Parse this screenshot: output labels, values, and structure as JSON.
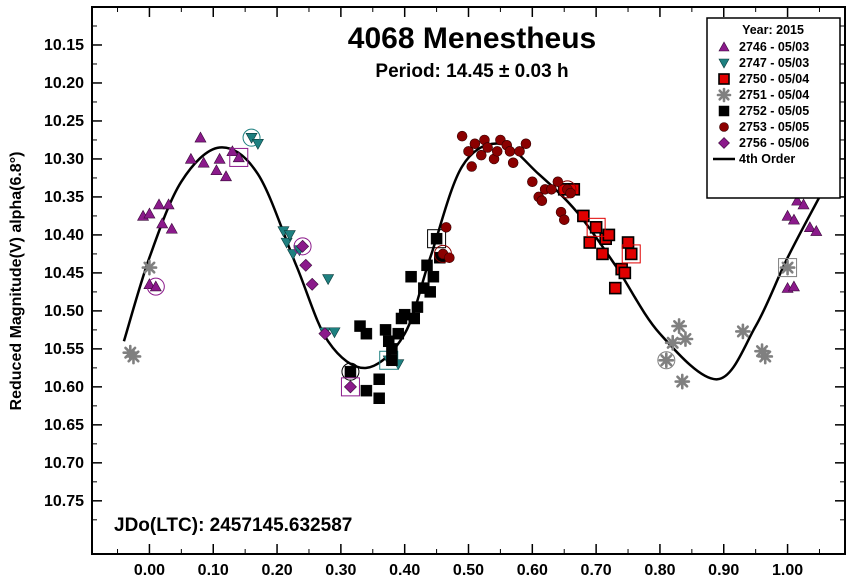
{
  "chart_data": {
    "type": "scatter",
    "title": "4068 Menestheus",
    "subtitle": "Period: 14.45 ± 0.03 h",
    "ylabel": "Reduced Magnitude(V) alpha(6.8°)",
    "xlabel": "",
    "annotation": "JDo(LTC): 2457145.632587",
    "xlim": [
      -0.09,
      1.09
    ],
    "ylim": [
      10.1,
      10.82
    ],
    "y_inverted": true,
    "x_ticks": [
      0.0,
      0.1,
      0.2,
      0.3,
      0.4,
      0.5,
      0.6,
      0.7,
      0.8,
      0.9,
      1.0
    ],
    "x_tick_labels": [
      "0.00",
      "0.10",
      "0.20",
      "0.30",
      "0.40",
      "0.50",
      "0.60",
      "0.70",
      "0.80",
      "0.90",
      "1.00"
    ],
    "y_ticks": [
      10.15,
      10.2,
      10.25,
      10.3,
      10.35,
      10.4,
      10.45,
      10.5,
      10.55,
      10.6,
      10.65,
      10.7,
      10.75
    ],
    "y_tick_labels": [
      "10.15",
      "10.20",
      "10.25",
      "10.30",
      "10.35",
      "10.40",
      "10.45",
      "10.50",
      "10.55",
      "10.60",
      "10.65",
      "10.70",
      "10.75"
    ],
    "legend": {
      "title": "Year: 2015",
      "placement": "top-right"
    },
    "series": [
      {
        "name": "2746 - 05/03",
        "marker": "triangle-up",
        "color": "#8B1A8B",
        "points": [
          [
            -0.01,
            10.375
          ],
          [
            0.0,
            10.372
          ],
          [
            0.015,
            10.36
          ],
          [
            0.03,
            10.36
          ],
          [
            0.02,
            10.385
          ],
          [
            0.035,
            10.392
          ],
          [
            0.065,
            10.3
          ],
          [
            0.08,
            10.272
          ],
          [
            0.085,
            10.305
          ],
          [
            0.105,
            10.315
          ],
          [
            0.11,
            10.3
          ],
          [
            0.13,
            10.29
          ],
          [
            0.12,
            10.323
          ],
          [
            0.14,
            10.298
          ],
          [
            0.0,
            10.465
          ],
          [
            0.01,
            10.468
          ],
          [
            1.0,
            10.375
          ],
          [
            1.01,
            10.38
          ],
          [
            1.015,
            10.355
          ],
          [
            1.025,
            10.36
          ],
          [
            1.035,
            10.39
          ],
          [
            1.045,
            10.395
          ],
          [
            1.0,
            10.47
          ],
          [
            1.01,
            10.468
          ]
        ],
        "circled": [
          [
            0.01,
            10.468
          ]
        ],
        "boxed": [
          [
            0.14,
            10.298
          ]
        ]
      },
      {
        "name": "2747 - 05/03",
        "marker": "triangle-down",
        "color": "#1E8080",
        "points": [
          [
            0.16,
            10.272
          ],
          [
            0.17,
            10.28
          ],
          [
            0.21,
            10.395
          ],
          [
            0.215,
            10.41
          ],
          [
            0.22,
            10.4
          ],
          [
            0.225,
            10.425
          ],
          [
            0.235,
            10.42
          ],
          [
            0.28,
            10.458
          ],
          [
            0.275,
            10.528
          ],
          [
            0.29,
            10.528
          ],
          [
            0.375,
            10.565
          ],
          [
            0.39,
            10.57
          ]
        ],
        "circled": [
          [
            0.16,
            10.272
          ]
        ],
        "boxed": [
          [
            0.375,
            10.565
          ]
        ]
      },
      {
        "name": "2750 - 05/04",
        "marker": "square",
        "color": "#E00000",
        "points": [
          [
            0.65,
            10.34
          ],
          [
            0.665,
            10.34
          ],
          [
            0.68,
            10.375
          ],
          [
            0.69,
            10.41
          ],
          [
            0.7,
            10.39
          ],
          [
            0.71,
            10.425
          ],
          [
            0.715,
            10.405
          ],
          [
            0.72,
            10.4
          ],
          [
            0.73,
            10.47
          ],
          [
            0.74,
            10.445
          ],
          [
            0.745,
            10.45
          ],
          [
            0.75,
            10.41
          ],
          [
            0.755,
            10.425
          ]
        ],
        "circled": [],
        "boxed": [
          [
            0.7,
            10.39
          ],
          [
            0.755,
            10.425
          ]
        ]
      },
      {
        "name": "2751 - 05/04",
        "marker": "asterisk",
        "color": "#808080",
        "points": [
          [
            -0.03,
            10.555
          ],
          [
            -0.025,
            10.56
          ],
          [
            0.0,
            10.443
          ],
          [
            0.81,
            10.565
          ],
          [
            0.82,
            10.542
          ],
          [
            0.83,
            10.52
          ],
          [
            0.835,
            10.593
          ],
          [
            0.84,
            10.537
          ],
          [
            0.93,
            10.527
          ],
          [
            0.96,
            10.553
          ],
          [
            0.965,
            10.56
          ],
          [
            1.0,
            10.443
          ]
        ],
        "circled": [
          [
            0.81,
            10.565
          ]
        ],
        "boxed": [
          [
            1.0,
            10.443
          ]
        ]
      },
      {
        "name": "2752 - 05/05",
        "marker": "square",
        "color": "#000000",
        "points": [
          [
            0.315,
            10.58
          ],
          [
            0.33,
            10.52
          ],
          [
            0.34,
            10.53
          ],
          [
            0.34,
            10.605
          ],
          [
            0.36,
            10.59
          ],
          [
            0.36,
            10.615
          ],
          [
            0.37,
            10.525
          ],
          [
            0.375,
            10.54
          ],
          [
            0.38,
            10.55
          ],
          [
            0.38,
            10.565
          ],
          [
            0.39,
            10.53
          ],
          [
            0.395,
            10.51
          ],
          [
            0.4,
            10.505
          ],
          [
            0.41,
            10.455
          ],
          [
            0.415,
            10.51
          ],
          [
            0.42,
            10.495
          ],
          [
            0.43,
            10.47
          ],
          [
            0.435,
            10.44
          ],
          [
            0.44,
            10.475
          ],
          [
            0.445,
            10.455
          ],
          [
            0.45,
            10.405
          ],
          [
            0.455,
            10.43
          ]
        ],
        "circled": [
          [
            0.315,
            10.58
          ]
        ],
        "boxed": [
          [
            0.45,
            10.405
          ]
        ]
      },
      {
        "name": "2753 - 05/05",
        "marker": "circle",
        "color": "#8B0000",
        "points": [
          [
            0.46,
            10.425
          ],
          [
            0.465,
            10.39
          ],
          [
            0.47,
            10.43
          ],
          [
            0.49,
            10.27
          ],
          [
            0.5,
            10.29
          ],
          [
            0.505,
            10.31
          ],
          [
            0.51,
            10.28
          ],
          [
            0.52,
            10.295
          ],
          [
            0.525,
            10.275
          ],
          [
            0.53,
            10.285
          ],
          [
            0.54,
            10.3
          ],
          [
            0.545,
            10.29
          ],
          [
            0.55,
            10.275
          ],
          [
            0.56,
            10.282
          ],
          [
            0.565,
            10.29
          ],
          [
            0.57,
            10.305
          ],
          [
            0.58,
            10.29
          ],
          [
            0.59,
            10.28
          ],
          [
            0.6,
            10.33
          ],
          [
            0.61,
            10.35
          ],
          [
            0.615,
            10.355
          ],
          [
            0.62,
            10.34
          ],
          [
            0.63,
            10.34
          ],
          [
            0.64,
            10.33
          ],
          [
            0.645,
            10.37
          ],
          [
            0.65,
            10.38
          ],
          [
            0.655,
            10.34
          ],
          [
            0.66,
            10.345
          ]
        ],
        "circled": [
          [
            0.46,
            10.425
          ],
          [
            0.655,
            10.34
          ]
        ],
        "boxed": []
      },
      {
        "name": "2756 - 05/06",
        "marker": "diamond",
        "color": "#8B1A8B",
        "points": [
          [
            0.24,
            10.415
          ],
          [
            0.245,
            10.44
          ],
          [
            0.255,
            10.465
          ],
          [
            0.275,
            10.53
          ],
          [
            0.315,
            10.6
          ]
        ],
        "circled": [
          [
            0.24,
            10.415
          ]
        ],
        "boxed": [
          [
            0.315,
            10.6
          ]
        ]
      }
    ],
    "fit": {
      "name": "4th Order",
      "color": "#000000",
      "curve": [
        [
          -0.04,
          10.54
        ],
        [
          0.0,
          10.43
        ],
        [
          0.05,
          10.33
        ],
        [
          0.11,
          10.285
        ],
        [
          0.17,
          10.32
        ],
        [
          0.23,
          10.44
        ],
        [
          0.28,
          10.54
        ],
        [
          0.34,
          10.575
        ],
        [
          0.4,
          10.53
        ],
        [
          0.44,
          10.43
        ],
        [
          0.49,
          10.31
        ],
        [
          0.55,
          10.28
        ],
        [
          0.61,
          10.32
        ],
        [
          0.67,
          10.37
        ],
        [
          0.73,
          10.44
        ],
        [
          0.8,
          10.53
        ],
        [
          0.89,
          10.59
        ],
        [
          0.95,
          10.52
        ],
        [
          1.0,
          10.43
        ],
        [
          1.05,
          10.35
        ]
      ]
    }
  }
}
